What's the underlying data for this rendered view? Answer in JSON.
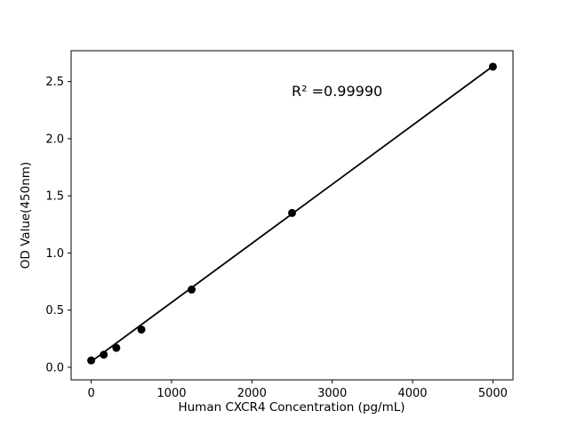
{
  "chart_data": {
    "type": "scatter",
    "title": "",
    "xlabel": "Human CXCR4 Concentration (pg/mL)",
    "ylabel": "OD Value(450nm)",
    "annotation": "R² =0.99990",
    "r_squared": 0.9999,
    "x": [
      0,
      156.25,
      312.5,
      625,
      1250,
      2500,
      5000
    ],
    "y": [
      0.06,
      0.11,
      0.17,
      0.33,
      0.68,
      1.35,
      2.63
    ],
    "fit_line": {
      "x": [
        0,
        5000
      ],
      "y": [
        0.05,
        2.635
      ]
    },
    "xlim": [
      -250,
      5250
    ],
    "ylim": [
      -0.11,
      2.77
    ],
    "x_ticks": [
      {
        "value": 0,
        "label": "0"
      },
      {
        "value": 1000,
        "label": "1000"
      },
      {
        "value": 2000,
        "label": "2000"
      },
      {
        "value": 3000,
        "label": "3000"
      },
      {
        "value": 4000,
        "label": "4000"
      },
      {
        "value": 5000,
        "label": "5000"
      }
    ],
    "y_ticks": [
      {
        "value": 0.0,
        "label": "0.0"
      },
      {
        "value": 0.5,
        "label": "0.5"
      },
      {
        "value": 1.0,
        "label": "1.0"
      },
      {
        "value": 1.5,
        "label": "1.5"
      },
      {
        "value": 2.0,
        "label": "2.0"
      },
      {
        "value": 2.5,
        "label": "2.5"
      }
    ],
    "grid": false,
    "legend": null,
    "colors": {
      "marker": "#000000",
      "line": "#000000",
      "axis": "#000000",
      "background": "#ffffff"
    }
  }
}
